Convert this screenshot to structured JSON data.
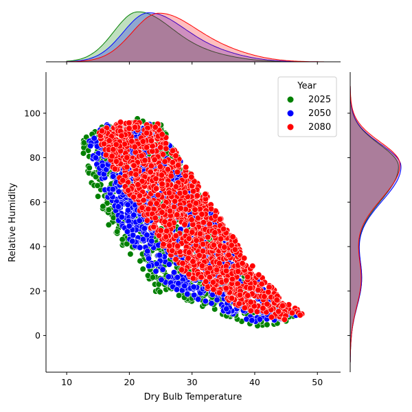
{
  "chart_data": {
    "type": "scatter",
    "title": "",
    "xlabel": "Dry Bulb Temperature",
    "ylabel": "Relative Humidity",
    "xlim": [
      6.7,
      53.7
    ],
    "ylim": [
      -16.5,
      118.5
    ],
    "xticks": [
      "10",
      "20",
      "30",
      "40",
      "50"
    ],
    "yticks": [
      "0",
      "20",
      "40",
      "60",
      "80",
      "100"
    ],
    "grid": false,
    "legend": {
      "title": "Year",
      "placement": "top-right"
    },
    "marginals": {
      "top": "kde of Dry Bulb Temperature",
      "right": "kde of Relative Humidity"
    },
    "series": [
      {
        "name": "2025",
        "color": "#008000",
        "envelope": [
          [
            12,
            86
          ],
          [
            14,
            92
          ],
          [
            17,
            96
          ],
          [
            21,
            98
          ],
          [
            25,
            95
          ],
          [
            28,
            80
          ],
          [
            32,
            62
          ],
          [
            36,
            44
          ],
          [
            39,
            30
          ],
          [
            43,
            15
          ],
          [
            47,
            9
          ],
          [
            44,
            5
          ],
          [
            40,
            4
          ],
          [
            36,
            8
          ],
          [
            32,
            12
          ],
          [
            28,
            17
          ],
          [
            24,
            20
          ],
          [
            21,
            34
          ],
          [
            19,
            40
          ],
          [
            16,
            52
          ],
          [
            14,
            68
          ],
          [
            12,
            82
          ]
        ],
        "kde_x_peak": 21.5,
        "kde_y_peak": 75
      },
      {
        "name": "2050",
        "color": "#0000ff",
        "envelope": [
          [
            13.5,
            88
          ],
          [
            16,
            95
          ],
          [
            20,
            95
          ],
          [
            24,
            95
          ],
          [
            27,
            85
          ],
          [
            31,
            65
          ],
          [
            35,
            46
          ],
          [
            39,
            30
          ],
          [
            43,
            16
          ],
          [
            47,
            9
          ],
          [
            44,
            6
          ],
          [
            40,
            6
          ],
          [
            36,
            10
          ],
          [
            32,
            14
          ],
          [
            28,
            19
          ],
          [
            24,
            27
          ],
          [
            21,
            40
          ],
          [
            19,
            47
          ],
          [
            17,
            58
          ],
          [
            15,
            74
          ],
          [
            13.5,
            84
          ]
        ],
        "kde_x_peak": 23,
        "kde_y_peak": 76
      },
      {
        "name": "2080",
        "color": "#ff0000",
        "envelope": [
          [
            15,
            92
          ],
          [
            18,
            96
          ],
          [
            22,
            96
          ],
          [
            25,
            95
          ],
          [
            28,
            80
          ],
          [
            32,
            65
          ],
          [
            36,
            47
          ],
          [
            40,
            30
          ],
          [
            44,
            18
          ],
          [
            48,
            9
          ],
          [
            45,
            7
          ],
          [
            41,
            9
          ],
          [
            37,
            14
          ],
          [
            33,
            20
          ],
          [
            29,
            27
          ],
          [
            26,
            38
          ],
          [
            24,
            45
          ],
          [
            22,
            55
          ],
          [
            20,
            62
          ],
          [
            18,
            72
          ],
          [
            16,
            82
          ],
          [
            15,
            90
          ]
        ],
        "kde_x_peak": 24.5,
        "kde_y_peak": 77
      }
    ]
  }
}
